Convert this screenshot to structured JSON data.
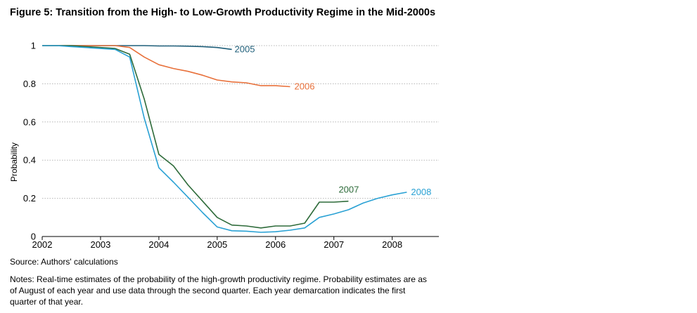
{
  "figure_title": "Figure 5: Transition from the High- to Low-Growth Productivity Regime in the Mid-2000s",
  "source": "Source: Authors' calculations",
  "notes": "Notes: Real-time estimates of the probability of the high-growth productivity regime. Probability estimates are as of August of each year and use data through the second quarter. Each year demarcation indicates the first quarter of that year.",
  "chart_data": {
    "type": "line",
    "title": "Figure 5: Transition from the High- to Low-Growth Productivity Regime in the Mid-2000s",
    "xlabel": "",
    "ylabel": "Probability",
    "xlim": [
      2002,
      2008.8
    ],
    "ylim": [
      0,
      1
    ],
    "x_ticks": [
      2002,
      2003,
      2004,
      2005,
      2006,
      2007,
      2008
    ],
    "x_tick_labels": [
      "2002",
      "2003",
      "2004",
      "2005",
      "2006",
      "2007",
      "2008"
    ],
    "y_ticks": [
      0,
      0.2,
      0.4,
      0.6,
      0.8,
      1
    ],
    "y_tick_labels": [
      "0",
      "0.2",
      "0.4",
      "0.6",
      "0.8",
      "1"
    ],
    "grid": "horizontal dotted",
    "series": [
      {
        "name": "2005",
        "label": "2005",
        "color": "#1f5f7a",
        "x": [
          2002.0,
          2002.25,
          2002.5,
          2002.75,
          2003.0,
          2003.25,
          2003.5,
          2003.75,
          2004.0,
          2004.25,
          2004.5,
          2004.75,
          2005.0,
          2005.25
        ],
        "y": [
          1.0,
          1.0,
          1.0,
          1.0,
          1.0,
          1.0,
          1.0,
          1.0,
          0.998,
          0.998,
          0.997,
          0.995,
          0.99,
          0.98
        ]
      },
      {
        "name": "2006",
        "label": "2006",
        "color": "#e8703a",
        "x": [
          2002.0,
          2002.25,
          2002.5,
          2002.75,
          2003.0,
          2003.25,
          2003.5,
          2003.75,
          2004.0,
          2004.25,
          2004.5,
          2004.75,
          2005.0,
          2005.25,
          2005.5,
          2005.75,
          2006.0,
          2006.25
        ],
        "y": [
          1.0,
          1.0,
          1.0,
          1.0,
          1.0,
          1.0,
          0.99,
          0.94,
          0.9,
          0.88,
          0.865,
          0.845,
          0.82,
          0.81,
          0.805,
          0.79,
          0.79,
          0.785
        ]
      },
      {
        "name": "2007",
        "label": "2007",
        "color": "#2e6b3a",
        "x": [
          2002.0,
          2002.25,
          2002.5,
          2002.75,
          2003.0,
          2003.25,
          2003.5,
          2003.75,
          2004.0,
          2004.25,
          2004.5,
          2004.75,
          2005.0,
          2005.25,
          2005.5,
          2005.75,
          2006.0,
          2006.25,
          2006.5,
          2006.75,
          2007.0,
          2007.25
        ],
        "y": [
          1.0,
          1.0,
          1.0,
          0.995,
          0.99,
          0.985,
          0.955,
          0.72,
          0.43,
          0.37,
          0.27,
          0.185,
          0.1,
          0.06,
          0.055,
          0.045,
          0.055,
          0.055,
          0.07,
          0.18,
          0.18,
          0.185
        ]
      },
      {
        "name": "2008",
        "label": "2008",
        "color": "#29a1d4",
        "x": [
          2002.0,
          2002.25,
          2002.5,
          2002.75,
          2003.0,
          2003.25,
          2003.5,
          2003.75,
          2004.0,
          2004.25,
          2004.5,
          2004.75,
          2005.0,
          2005.25,
          2005.5,
          2005.75,
          2006.0,
          2006.25,
          2006.5,
          2006.75,
          2007.0,
          2007.25,
          2007.5,
          2007.75,
          2008.0,
          2008.25
        ],
        "y": [
          1.0,
          1.0,
          0.995,
          0.99,
          0.985,
          0.98,
          0.94,
          0.62,
          0.36,
          0.285,
          0.205,
          0.125,
          0.05,
          0.03,
          0.028,
          0.022,
          0.025,
          0.033,
          0.045,
          0.1,
          0.118,
          0.14,
          0.175,
          0.2,
          0.218,
          0.232
        ]
      }
    ]
  }
}
